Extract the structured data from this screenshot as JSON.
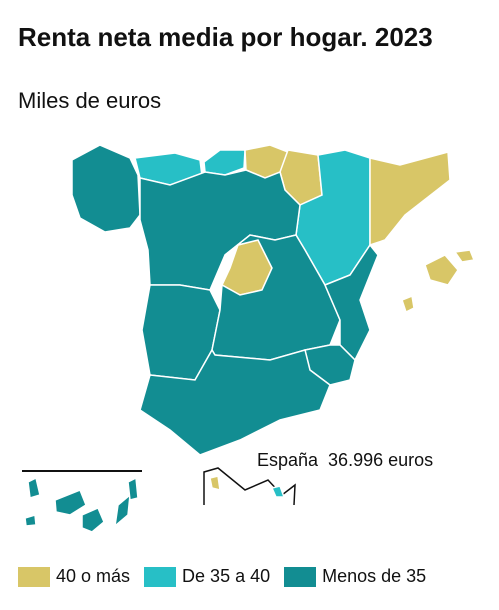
{
  "header": {
    "title": "Renta neta media por hogar. 2023",
    "subtitle": "Miles de euros"
  },
  "annotation": "España  36.996 euros",
  "legend": [
    {
      "label": "40 o más",
      "color": "#d8c667"
    },
    {
      "label": "De 35 a 40",
      "color": "#27bfc6"
    },
    {
      "label": "Menos de 35",
      "color": "#128d92"
    }
  ]
}
